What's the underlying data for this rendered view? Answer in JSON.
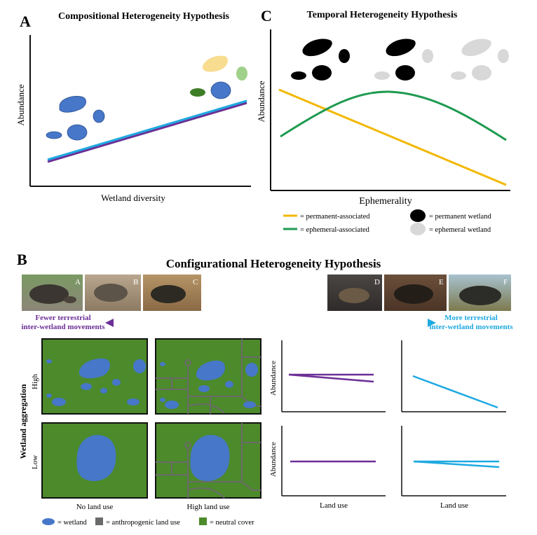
{
  "panelA": {
    "letter": "A",
    "title": "Compositional Heterogeneity Hypothesis",
    "xlabel": "Wetland diversity",
    "ylabel": "Abundance"
  },
  "panelC": {
    "letter": "C",
    "title": "Temporal Heterogeneity Hypothesis",
    "xlabel": "Ephemerality",
    "ylabel": "Abundance",
    "legend": {
      "permanent_associated": "= permanent-associated",
      "ephemeral_associated": "= ephemeral-associated",
      "permanent_wetland": "= permanent wetland",
      "ephemeral_wetland": "= ephemeral wetland"
    }
  },
  "panelB": {
    "letter": "B",
    "title": "Configurational Heterogeneity Hypothesis",
    "photo_labels": [
      "A",
      "B",
      "C",
      "D",
      "E",
      "F"
    ],
    "fewer": [
      "Fewer terrestrial",
      "inter-wetland movements"
    ],
    "more": [
      "More terrestrial",
      "inter-wetland movements"
    ],
    "aggregation_label": "Wetland aggregation",
    "high": "High",
    "low": "Low",
    "no_land_use": "No land use",
    "high_land_use": "High land use",
    "abundance": "Abundance",
    "land_use": "Land use",
    "legend": {
      "wetland": "= wetland",
      "anthropogenic": "= anthropogenic land use",
      "neutral": "= neutral cover"
    }
  },
  "colors": {
    "purple": "#6b2f96",
    "cyan": "#1fa9e1",
    "orange": "#f2b800",
    "green": "#1e9a50",
    "wetland": "#4677c8",
    "neutral": "#4c8a2b",
    "road": "#6a6a6a"
  }
}
